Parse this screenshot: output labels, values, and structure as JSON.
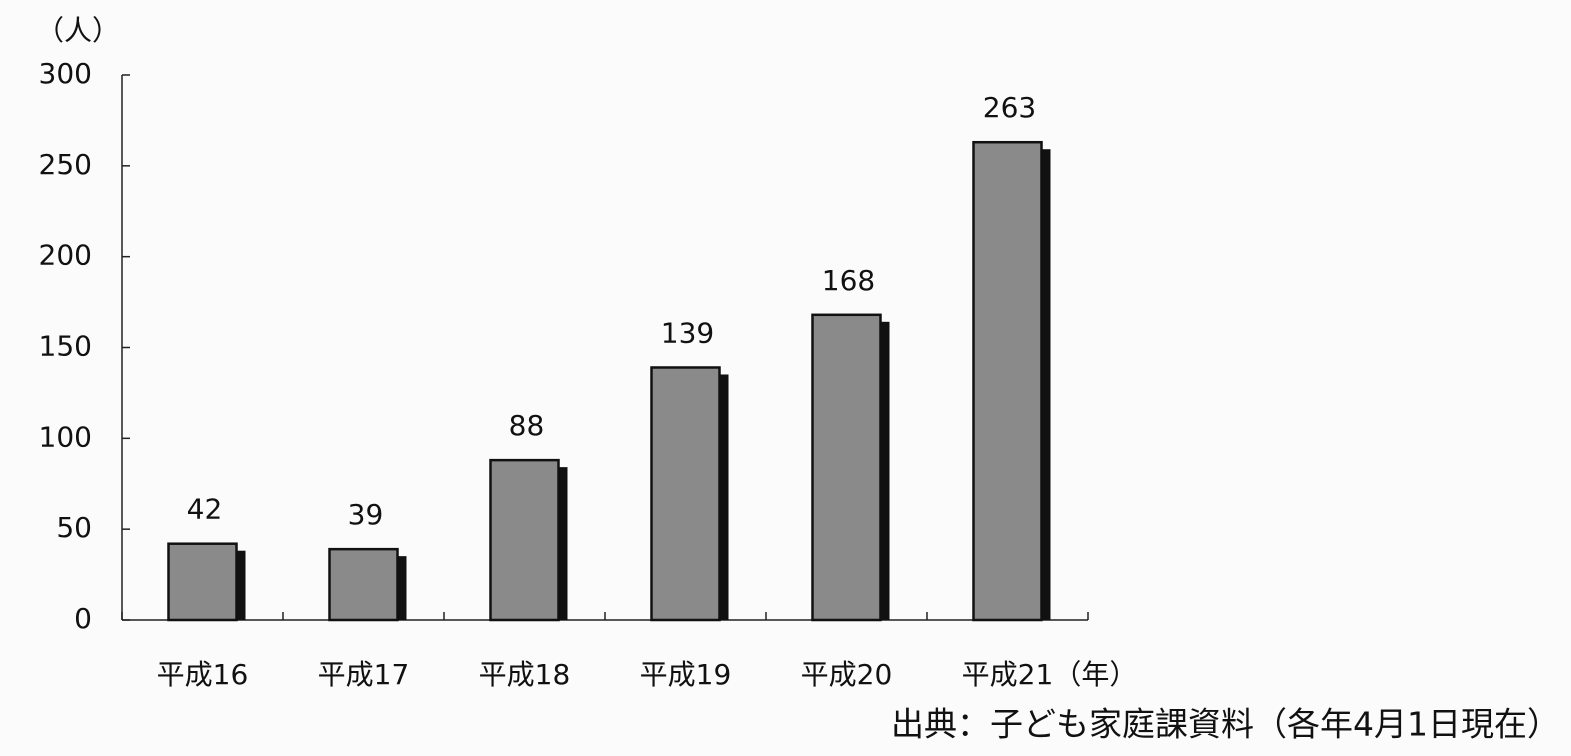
{
  "chart_data": {
    "type": "bar",
    "y_label": "（人）",
    "x_label": "（年）",
    "categories": [
      "平成16",
      "平成17",
      "平成18",
      "平成19",
      "平成20",
      "平成21"
    ],
    "values": [
      42,
      39,
      88,
      139,
      168,
      263
    ],
    "color": "#8a8a8a",
    "ylim": [
      0,
      300
    ],
    "yticks": [
      0,
      50,
      100,
      150,
      200,
      250,
      300
    ],
    "source": "出典：子ども家庭課資料（各年4月1日現在）"
  }
}
